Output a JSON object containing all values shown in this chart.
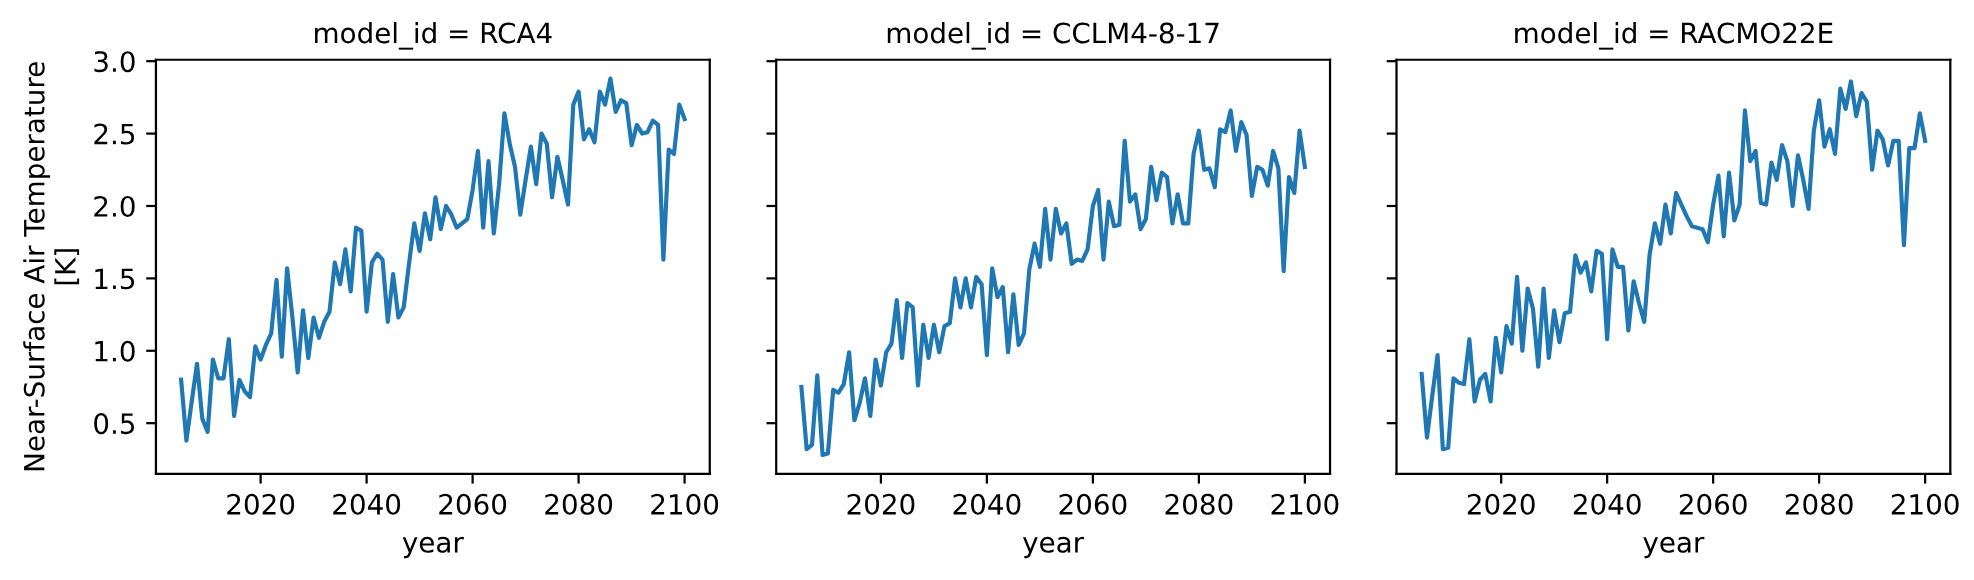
{
  "chart_data": [
    {
      "type": "line",
      "title": "model_id = RCA4",
      "xlabel": "year",
      "ylabel": "Near-Surface Air Temperature\n[K]",
      "x": [
        2005,
        2006,
        2007,
        2008,
        2009,
        2010,
        2011,
        2012,
        2013,
        2014,
        2015,
        2016,
        2017,
        2018,
        2019,
        2020,
        2021,
        2022,
        2023,
        2024,
        2025,
        2026,
        2027,
        2028,
        2029,
        2030,
        2031,
        2032,
        2033,
        2034,
        2035,
        2036,
        2037,
        2038,
        2039,
        2040,
        2041,
        2042,
        2043,
        2044,
        2045,
        2046,
        2047,
        2048,
        2049,
        2050,
        2051,
        2052,
        2053,
        2054,
        2055,
        2056,
        2057,
        2058,
        2059,
        2060,
        2061,
        2062,
        2063,
        2064,
        2065,
        2066,
        2067,
        2068,
        2069,
        2070,
        2071,
        2072,
        2073,
        2074,
        2075,
        2076,
        2077,
        2078,
        2079,
        2080,
        2081,
        2082,
        2083,
        2084,
        2085,
        2086,
        2087,
        2088,
        2089,
        2090,
        2091,
        2092,
        2093,
        2094,
        2095,
        2096,
        2097,
        2098,
        2099,
        2100
      ],
      "series": [
        {
          "color": "#1f77b4",
          "values": [
            0.8,
            0.38,
            0.65,
            0.91,
            0.53,
            0.44,
            0.94,
            0.81,
            0.81,
            1.08,
            0.55,
            0.8,
            0.72,
            0.68,
            1.03,
            0.94,
            1.04,
            1.12,
            1.49,
            0.96,
            1.57,
            1.23,
            0.85,
            1.28,
            0.95,
            1.23,
            1.09,
            1.2,
            1.27,
            1.61,
            1.46,
            1.7,
            1.41,
            1.85,
            1.83,
            1.27,
            1.61,
            1.67,
            1.63,
            1.2,
            1.53,
            1.23,
            1.3,
            1.6,
            1.88,
            1.69,
            1.95,
            1.77,
            2.06,
            1.84,
            2.0,
            1.94,
            1.85,
            1.88,
            1.91,
            2.11,
            2.38,
            1.85,
            2.31,
            1.81,
            2.15,
            2.64,
            2.43,
            2.27,
            1.94,
            2.18,
            2.41,
            2.15,
            2.5,
            2.43,
            2.06,
            2.34,
            2.18,
            2.01,
            2.7,
            2.79,
            2.46,
            2.53,
            2.44,
            2.79,
            2.7,
            2.88,
            2.65,
            2.73,
            2.71,
            2.42,
            2.56,
            2.5,
            2.51,
            2.59,
            2.56,
            1.63,
            2.39,
            2.36,
            2.7,
            2.6
          ]
        }
      ],
      "xlim": [
        2000.25,
        2104.75
      ],
      "ylim": [
        0.15,
        3.01
      ],
      "xticks": [
        2020,
        2040,
        2060,
        2080,
        2100
      ],
      "yticks": [
        0.5,
        {
          "value": 1,
          "label": "1.0"
        },
        1.5,
        {
          "value": 2,
          "label": "2.0"
        },
        2.5,
        {
          "value": 3,
          "label": "3.0"
        }
      ],
      "grid": false
    },
    {
      "type": "line",
      "title": "model_id = CCLM4-8-17",
      "xlabel": "year",
      "x": [
        2005,
        2006,
        2007,
        2008,
        2009,
        2010,
        2011,
        2012,
        2013,
        2014,
        2015,
        2016,
        2017,
        2018,
        2019,
        2020,
        2021,
        2022,
        2023,
        2024,
        2025,
        2026,
        2027,
        2028,
        2029,
        2030,
        2031,
        2032,
        2033,
        2034,
        2035,
        2036,
        2037,
        2038,
        2039,
        2040,
        2041,
        2042,
        2043,
        2044,
        2045,
        2046,
        2047,
        2048,
        2049,
        2050,
        2051,
        2052,
        2053,
        2054,
        2055,
        2056,
        2057,
        2058,
        2059,
        2060,
        2061,
        2062,
        2063,
        2064,
        2065,
        2066,
        2067,
        2068,
        2069,
        2070,
        2071,
        2072,
        2073,
        2074,
        2075,
        2076,
        2077,
        2078,
        2079,
        2080,
        2081,
        2082,
        2083,
        2084,
        2085,
        2086,
        2087,
        2088,
        2089,
        2090,
        2091,
        2092,
        2093,
        2094,
        2095,
        2096,
        2097,
        2098,
        2099,
        2100
      ],
      "series": [
        {
          "color": "#1f77b4",
          "values": [
            0.75,
            0.32,
            0.35,
            0.83,
            0.28,
            0.29,
            0.73,
            0.71,
            0.77,
            0.99,
            0.52,
            0.64,
            0.81,
            0.55,
            0.94,
            0.76,
            0.99,
            1.05,
            1.35,
            0.95,
            1.33,
            1.3,
            0.76,
            1.18,
            0.95,
            1.18,
            0.99,
            1.17,
            1.19,
            1.5,
            1.3,
            1.5,
            1.3,
            1.51,
            1.46,
            0.97,
            1.57,
            1.37,
            1.44,
            0.99,
            1.39,
            1.04,
            1.12,
            1.56,
            1.74,
            1.58,
            1.98,
            1.63,
            1.98,
            1.81,
            1.88,
            1.6,
            1.63,
            1.62,
            1.7,
            2.0,
            2.11,
            1.63,
            2.03,
            1.86,
            1.87,
            2.45,
            2.03,
            2.08,
            1.84,
            1.91,
            2.27,
            2.04,
            2.23,
            2.2,
            1.88,
            2.08,
            1.88,
            1.88,
            2.36,
            2.52,
            2.25,
            2.26,
            2.13,
            2.53,
            2.51,
            2.66,
            2.38,
            2.58,
            2.49,
            2.07,
            2.27,
            2.25,
            2.14,
            2.38,
            2.26,
            1.55,
            2.2,
            2.09,
            2.52,
            2.27
          ]
        }
      ],
      "xlim": [
        2000.25,
        2104.75
      ],
      "ylim": [
        0.15,
        3.01
      ],
      "xticks": [
        2020,
        2040,
        2060,
        2080,
        2100
      ],
      "yticks": [
        {
          "value": 0.5,
          "label": null
        },
        {
          "value": 1,
          "label": null
        },
        {
          "value": 1.5,
          "label": null
        },
        {
          "value": 2,
          "label": null
        },
        {
          "value": 2.5,
          "label": null
        },
        {
          "value": 3,
          "label": null
        }
      ],
      "tick_labels": "x",
      "grid": false
    },
    {
      "type": "line",
      "title": "model_id = RACMO22E",
      "xlabel": "year",
      "x": [
        2005,
        2006,
        2007,
        2008,
        2009,
        2010,
        2011,
        2012,
        2013,
        2014,
        2015,
        2016,
        2017,
        2018,
        2019,
        2020,
        2021,
        2022,
        2023,
        2024,
        2025,
        2026,
        2027,
        2028,
        2029,
        2030,
        2031,
        2032,
        2033,
        2034,
        2035,
        2036,
        2037,
        2038,
        2039,
        2040,
        2041,
        2042,
        2043,
        2044,
        2045,
        2046,
        2047,
        2048,
        2049,
        2050,
        2051,
        2052,
        2053,
        2054,
        2055,
        2056,
        2057,
        2058,
        2059,
        2060,
        2061,
        2062,
        2063,
        2064,
        2065,
        2066,
        2067,
        2068,
        2069,
        2070,
        2071,
        2072,
        2073,
        2074,
        2075,
        2076,
        2077,
        2078,
        2079,
        2080,
        2081,
        2082,
        2083,
        2084,
        2085,
        2086,
        2087,
        2088,
        2089,
        2090,
        2091,
        2092,
        2093,
        2094,
        2095,
        2096,
        2097,
        2098,
        2099,
        2100
      ],
      "series": [
        {
          "color": "#1f77b4",
          "values": [
            0.84,
            0.4,
            0.69,
            0.97,
            0.32,
            0.33,
            0.81,
            0.78,
            0.77,
            1.08,
            0.65,
            0.8,
            0.84,
            0.65,
            1.09,
            0.85,
            1.17,
            1.05,
            1.51,
            1.0,
            1.43,
            1.29,
            0.89,
            1.43,
            0.95,
            1.28,
            1.06,
            1.26,
            1.27,
            1.66,
            1.54,
            1.61,
            1.41,
            1.69,
            1.67,
            1.08,
            1.7,
            1.58,
            1.58,
            1.14,
            1.48,
            1.33,
            1.2,
            1.66,
            1.88,
            1.74,
            2.01,
            1.81,
            2.09,
            2.01,
            1.93,
            1.86,
            1.85,
            1.84,
            1.75,
            2.01,
            2.21,
            1.79,
            2.23,
            1.9,
            2.01,
            2.66,
            2.31,
            2.38,
            2.02,
            2.01,
            2.3,
            2.18,
            2.42,
            2.31,
            2.0,
            2.35,
            2.18,
            1.98,
            2.52,
            2.73,
            2.41,
            2.53,
            2.36,
            2.81,
            2.67,
            2.86,
            2.62,
            2.78,
            2.72,
            2.25,
            2.52,
            2.46,
            2.28,
            2.45,
            2.45,
            1.73,
            2.4,
            2.4,
            2.64,
            2.45
          ]
        }
      ],
      "xlim": [
        2000.25,
        2104.75
      ],
      "ylim": [
        0.15,
        3.01
      ],
      "xticks": [
        2020,
        2040,
        2060,
        2080,
        2100
      ],
      "yticks": [
        {
          "value": 0.5,
          "label": null
        },
        {
          "value": 1,
          "label": null
        },
        {
          "value": 1.5,
          "label": null
        },
        {
          "value": 2,
          "label": null
        },
        {
          "value": 2.5,
          "label": null
        },
        {
          "value": 3,
          "label": null
        }
      ],
      "tick_labels": "x",
      "grid": false
    }
  ]
}
